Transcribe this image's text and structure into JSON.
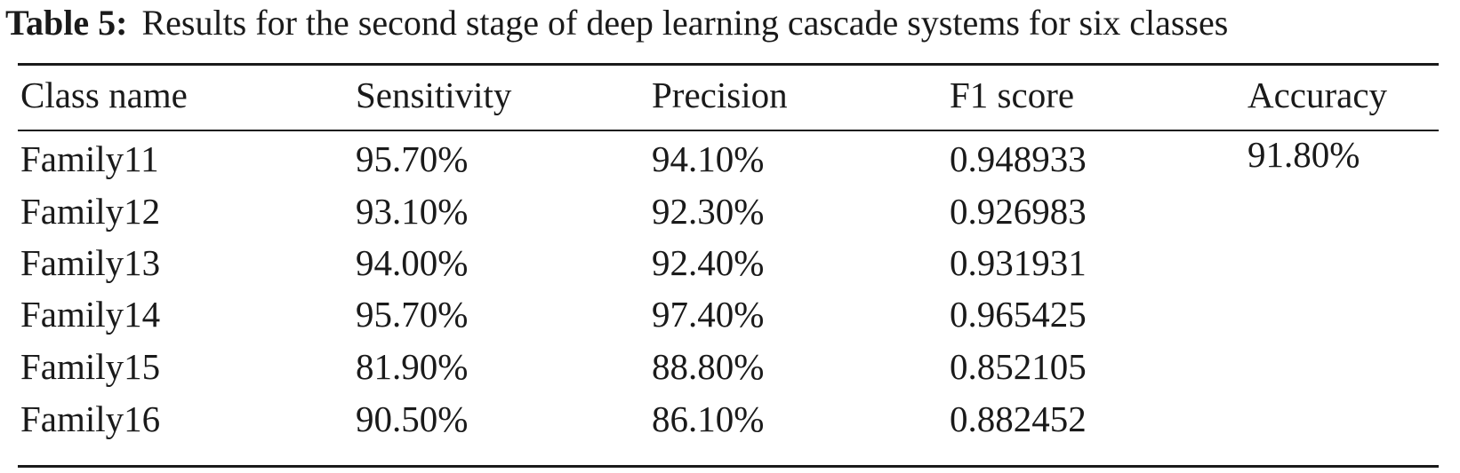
{
  "caption": {
    "label": "Table 5:",
    "text": "Results for the second stage of deep learning cascade systems for six classes"
  },
  "table": {
    "headers": [
      "Class name",
      "Sensitivity",
      "Precision",
      "F1 score",
      "Accuracy"
    ],
    "rows": [
      [
        "Family11",
        "95.70%",
        "94.10%",
        "0.948933",
        "91.80%"
      ],
      [
        "Family12",
        "93.10%",
        "92.30%",
        "0.926983",
        ""
      ],
      [
        "Family13",
        "94.00%",
        "92.40%",
        "0.931931",
        ""
      ],
      [
        "Family14",
        "95.70%",
        "97.40%",
        "0.965425",
        ""
      ],
      [
        "Family15",
        "81.90%",
        "88.80%",
        "0.852105",
        ""
      ],
      [
        "Family16",
        "90.50%",
        "86.10%",
        "0.882452",
        ""
      ]
    ]
  }
}
